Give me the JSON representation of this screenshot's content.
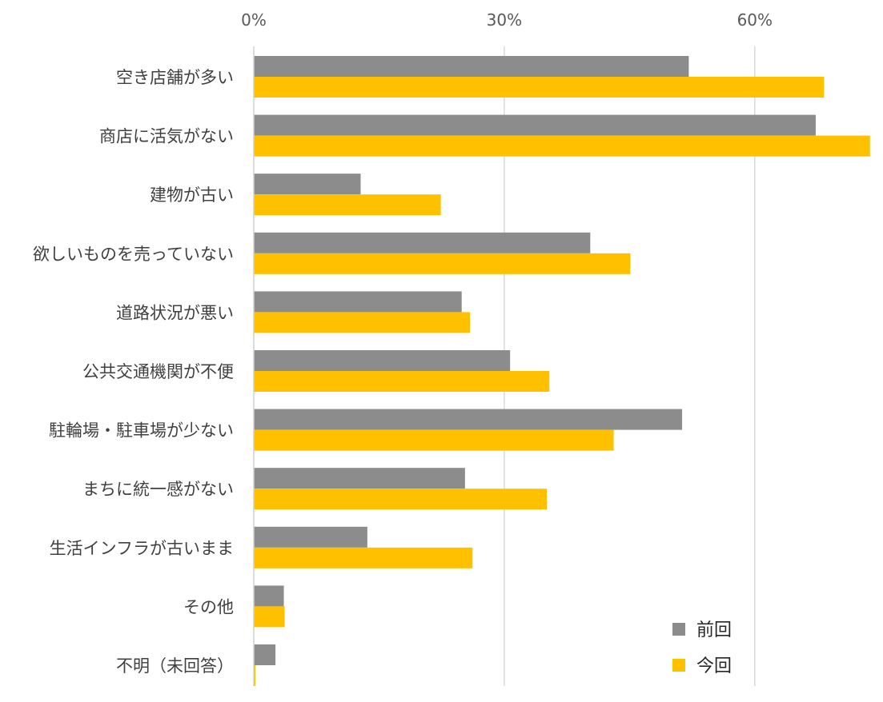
{
  "chart_data": {
    "type": "bar",
    "orientation": "horizontal",
    "title": "",
    "xlabel": "",
    "ylabel": "",
    "xlim": [
      0,
      74
    ],
    "ticks": [
      0,
      30,
      60
    ],
    "tick_labels": [
      "0%",
      "30%",
      "60%"
    ],
    "axis_position": "top",
    "grid": true,
    "legend_position": "bottom-right",
    "categories": [
      "空き店舗が多い",
      "商店に活気がない",
      "建物が古い",
      "欲しいものを売っていない",
      "道路状況が悪い",
      "公共交通機関が不便",
      "駐輪場・駐車場が少ない",
      "まちに統一感がない",
      "生活インフラが古いまま",
      "その他",
      "不明（未回答）"
    ],
    "series": [
      {
        "name": "前回",
        "color": "#8c8c8c",
        "values": [
          52.1,
          67.3,
          12.8,
          40.3,
          24.9,
          30.7,
          51.3,
          25.3,
          13.6,
          3.6,
          2.6
        ]
      },
      {
        "name": "今回",
        "color": "#ffc000",
        "values": [
          68.3,
          73.8,
          22.4,
          45.1,
          25.9,
          35.4,
          43.1,
          35.1,
          26.2,
          3.7,
          0.2
        ]
      }
    ]
  }
}
